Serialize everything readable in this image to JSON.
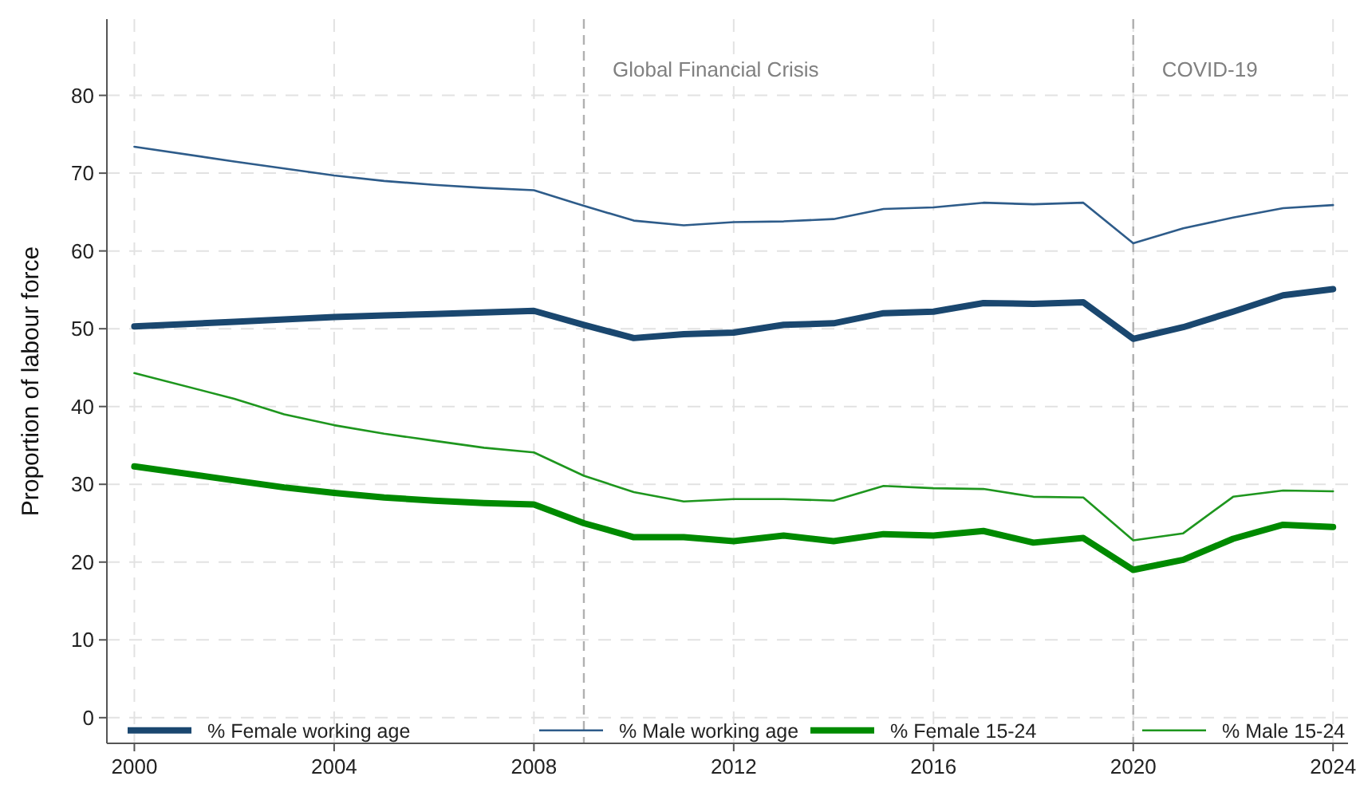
{
  "chart_data": {
    "type": "line",
    "ylabel": "Proportion of labour force",
    "xlim": [
      1999.45,
      2024.3
    ],
    "ylim": [
      -3.3,
      89.8
    ],
    "xticks": [
      2000,
      2004,
      2008,
      2012,
      2016,
      2020,
      2024
    ],
    "yticks": [
      0,
      10,
      20,
      30,
      40,
      50,
      60,
      70,
      80
    ],
    "grid": true,
    "legend": "bottom",
    "line_style": "solid",
    "marker": "none",
    "ref_lines": [
      {
        "axis": "x",
        "value": 2009,
        "label": "Global Financial Crisis",
        "color": "#b0b0b0",
        "line_style": "dashed"
      },
      {
        "axis": "x",
        "value": 2020,
        "label": "COVID-19",
        "color": "#b0b0b0",
        "line_style": "dashed"
      }
    ],
    "x": [
      2000,
      2002,
      2003,
      2004,
      2005,
      2006,
      2007,
      2008,
      2009,
      2010,
      2011,
      2012,
      2013,
      2014,
      2015,
      2016,
      2017,
      2018,
      2019,
      2020,
      2021,
      2022,
      2023,
      2024
    ],
    "series": [
      {
        "name": "% Female working age",
        "color": "#1a476f",
        "values": [
          50.3,
          50.9,
          51.2,
          51.5,
          51.7,
          51.9,
          52.1,
          52.3,
          50.5,
          48.8,
          49.3,
          49.5,
          50.5,
          50.7,
          52.0,
          52.2,
          53.3,
          53.2,
          53.4,
          48.7,
          50.2,
          52.2,
          54.3,
          55.1
        ]
      },
      {
        "name": "% Male working age",
        "color": "#2e5c8a",
        "values": [
          73.4,
          71.5,
          70.6,
          69.7,
          69.0,
          68.5,
          68.1,
          67.8,
          65.8,
          63.9,
          63.3,
          63.7,
          63.8,
          64.1,
          65.4,
          65.6,
          66.2,
          66.0,
          66.2,
          61.0,
          62.9,
          64.3,
          65.5,
          65.9
        ]
      },
      {
        "name": "% Female 15-24",
        "color": "#008a00",
        "values": [
          32.3,
          30.5,
          29.6,
          28.9,
          28.3,
          27.9,
          27.6,
          27.4,
          25.0,
          23.2,
          23.2,
          22.7,
          23.4,
          22.7,
          23.6,
          23.4,
          24.0,
          22.5,
          23.1,
          19.0,
          20.3,
          23.0,
          24.8,
          24.5
        ]
      },
      {
        "name": "% Male 15-24",
        "color": "#1e961e",
        "values": [
          44.3,
          41.0,
          39.0,
          37.6,
          36.5,
          35.6,
          34.7,
          34.1,
          31.1,
          29.0,
          27.8,
          28.1,
          28.1,
          27.9,
          29.8,
          29.5,
          29.4,
          28.4,
          28.3,
          22.8,
          23.7,
          28.4,
          29.2,
          29.1
        ]
      }
    ]
  }
}
